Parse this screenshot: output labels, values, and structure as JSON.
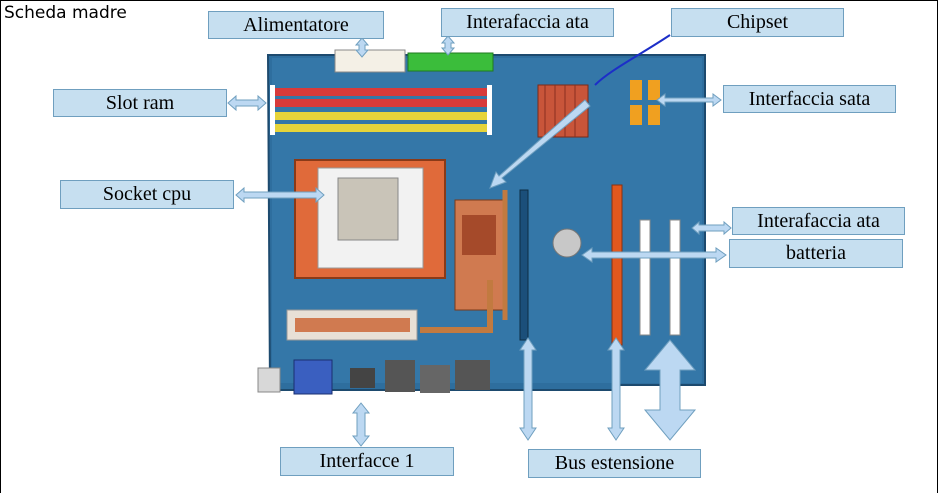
{
  "title": "Scheda madre",
  "labels": {
    "alimentatore": "Alimentatore",
    "interfaccia_ata_top": "Interafaccia ata",
    "chipset": "Chipset",
    "slot_ram": "Slot ram",
    "interfaccia_sata": "Interfaccia sata",
    "socket_cpu": "Socket cpu",
    "interfaccia_ata_right": "Interafaccia ata",
    "batteria": "batteria",
    "interfacce_1": "Interfacce 1",
    "bus_estensione": "Bus estensione"
  },
  "colors": {
    "label_fill": "#c6dff0",
    "arrow_fill": "#bcd8f2",
    "board": "#2e6e9e"
  }
}
